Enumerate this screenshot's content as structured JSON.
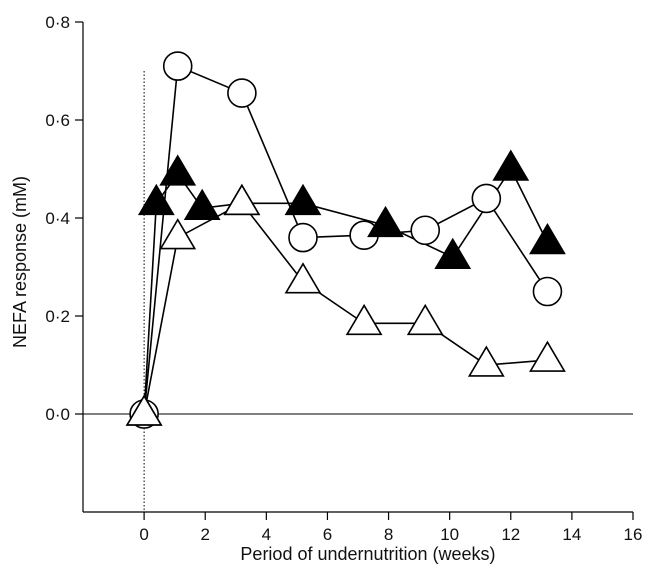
{
  "chart_data": {
    "type": "line",
    "xlabel": "Period of undernutrition (weeks)",
    "ylabel": "NEFA response (mM)",
    "xlim": [
      -2,
      16
    ],
    "ylim": [
      -0.2,
      0.8
    ],
    "x_ticks": [
      {
        "value": 0,
        "label": "0"
      },
      {
        "value": 2,
        "label": "2"
      },
      {
        "value": 4,
        "label": "4"
      },
      {
        "value": 6,
        "label": "6"
      },
      {
        "value": 8,
        "label": "8"
      },
      {
        "value": 10,
        "label": "10"
      },
      {
        "value": 12,
        "label": "12"
      },
      {
        "value": 14,
        "label": "14"
      },
      {
        "value": 16,
        "label": "16"
      }
    ],
    "y_ticks": [
      {
        "value": 0.0,
        "label": "0·0"
      },
      {
        "value": 0.2,
        "label": "0·2"
      },
      {
        "value": 0.4,
        "label": "0·4"
      },
      {
        "value": 0.6,
        "label": "0·6"
      },
      {
        "value": 0.8,
        "label": "0·8"
      }
    ],
    "zero_lines": {
      "horizontal": 0.0,
      "vertical": 0.0,
      "vertical_ymax": 0.7
    },
    "series": [
      {
        "marker": "open-circle",
        "color": "#000000",
        "points": [
          {
            "x": 0,
            "y": 0.0
          },
          {
            "x": 1.1,
            "y": 0.71
          },
          {
            "x": 3.2,
            "y": 0.655
          },
          {
            "x": 5.2,
            "y": 0.36
          },
          {
            "x": 7.2,
            "y": 0.365
          },
          {
            "x": 9.2,
            "y": 0.375
          },
          {
            "x": 11.2,
            "y": 0.44
          },
          {
            "x": 13.2,
            "y": 0.25
          }
        ]
      },
      {
        "marker": "filled-triangle",
        "color": "#000000",
        "points": [
          {
            "x": 0,
            "y": 0.0
          },
          {
            "x": 0.4,
            "y": 0.43
          },
          {
            "x": 1.1,
            "y": 0.49
          },
          {
            "x": 1.9,
            "y": 0.42
          },
          {
            "x": 3.2,
            "y": 0.43
          },
          {
            "x": 5.2,
            "y": 0.43
          },
          {
            "x": 7.9,
            "y": 0.385
          },
          {
            "x": 10.1,
            "y": 0.32
          },
          {
            "x": 12.0,
            "y": 0.5
          },
          {
            "x": 13.2,
            "y": 0.35
          }
        ]
      },
      {
        "marker": "open-triangle",
        "color": "#000000",
        "points": [
          {
            "x": 0,
            "y": 0.0
          },
          {
            "x": 1.1,
            "y": 0.36
          },
          {
            "x": 3.2,
            "y": 0.43
          },
          {
            "x": 5.2,
            "y": 0.27
          },
          {
            "x": 7.2,
            "y": 0.185
          },
          {
            "x": 9.2,
            "y": 0.185
          },
          {
            "x": 11.2,
            "y": 0.1
          },
          {
            "x": 13.2,
            "y": 0.11
          }
        ]
      }
    ]
  }
}
